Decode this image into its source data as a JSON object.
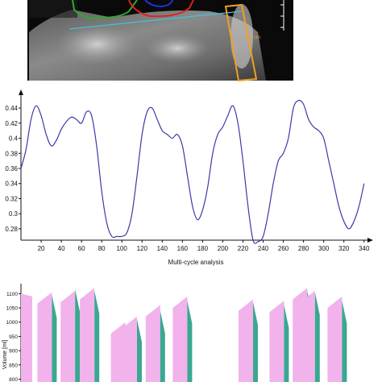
{
  "image_panel": {
    "measure_label": "5.1 cm",
    "colors": {
      "green_roi": "#2fa82f",
      "red_roi": "#e02020",
      "blue_roi": "#2030e0",
      "cyan_line": "#3cc6d8",
      "orange_box": "#f0a020"
    }
  },
  "chart_data": [
    {
      "type": "line",
      "xlabel": "Multi-cycle analysis",
      "ylabel": "",
      "xlim": [
        0,
        345
      ],
      "ylim": [
        0.265,
        0.455
      ],
      "x_ticks": [
        20,
        40,
        60,
        80,
        100,
        120,
        140,
        160,
        180,
        200,
        220,
        240,
        260,
        280,
        300,
        320,
        340
      ],
      "y_ticks": [
        0.28,
        0.3,
        0.32,
        0.34,
        0.36,
        0.38,
        0.4,
        0.42,
        0.44
      ],
      "series": [
        {
          "color": "#3a3aa8",
          "x": [
            0,
            5,
            10,
            15,
            20,
            25,
            30,
            35,
            40,
            45,
            50,
            55,
            60,
            65,
            70,
            75,
            80,
            85,
            90,
            95,
            100,
            105,
            110,
            115,
            120,
            125,
            130,
            135,
            140,
            145,
            150,
            155,
            160,
            165,
            170,
            175,
            180,
            185,
            190,
            195,
            200,
            205,
            210,
            215,
            220,
            225,
            230,
            235,
            240,
            245,
            250,
            255,
            260,
            265,
            270,
            275,
            280,
            285,
            290,
            295,
            300,
            305,
            310,
            315,
            320,
            325,
            330,
            335,
            340
          ],
          "y": [
            0.36,
            0.385,
            0.425,
            0.443,
            0.43,
            0.405,
            0.39,
            0.397,
            0.412,
            0.422,
            0.428,
            0.425,
            0.42,
            0.435,
            0.43,
            0.39,
            0.33,
            0.288,
            0.27,
            0.27,
            0.27,
            0.275,
            0.3,
            0.35,
            0.405,
            0.435,
            0.44,
            0.425,
            0.41,
            0.405,
            0.4,
            0.405,
            0.39,
            0.35,
            0.31,
            0.292,
            0.305,
            0.335,
            0.38,
            0.405,
            0.415,
            0.43,
            0.443,
            0.42,
            0.37,
            0.31,
            0.265,
            0.263,
            0.27,
            0.3,
            0.34,
            0.37,
            0.38,
            0.4,
            0.44,
            0.45,
            0.445,
            0.425,
            0.415,
            0.41,
            0.4,
            0.37,
            0.34,
            0.31,
            0.29,
            0.28,
            0.29,
            0.31,
            0.34
          ]
        }
      ]
    },
    {
      "type": "area",
      "ylabel": "Volume [ml]",
      "y_ticks": [
        800,
        850,
        900,
        950,
        1000,
        1050,
        1100
      ],
      "ylim": [
        790,
        1135
      ],
      "xlim": [
        0,
        450
      ],
      "series": [
        {
          "name": "",
          "color": "#f2b2ec",
          "x": [
            0,
            6,
            12,
            18,
            24,
            30,
            36,
            42,
            48,
            54,
            60,
            66,
            72,
            78,
            84,
            90,
            96,
            102,
            108,
            114,
            120,
            126,
            132,
            138,
            144,
            150,
            156,
            162,
            168,
            174,
            180,
            186,
            192,
            198,
            204,
            210,
            216,
            222,
            228,
            234,
            240,
            246,
            252,
            258,
            264,
            270,
            276,
            282,
            288,
            294,
            300,
            306,
            312,
            318,
            324,
            330,
            336,
            342,
            348,
            354,
            360,
            366,
            372,
            378,
            384,
            390,
            396,
            402,
            408,
            414,
            420,
            426,
            432,
            438,
            444
          ],
          "y": [
            1100,
            1095,
            1090,
            1085,
            1060,
            1040,
            1030,
            1060,
            1080,
            1070,
            1060,
            1050,
            1050,
            1080,
            1050,
            1030,
            1020,
            1010,
            1000,
            990,
            985,
            990,
            990,
            1000,
            1020,
            1010,
            1005,
            995,
            985,
            975,
            990,
            1000,
            1020,
            1030,
            1030,
            1040,
            1020,
            1010,
            1000,
            990,
            985,
            990,
            990,
            1000,
            1030,
            1050,
            1060,
            1070,
            1080,
            1070,
            1060,
            1040,
            1020,
            1030,
            1040,
            1060,
            1050,
            1070,
            1080,
            1090,
            1090,
            1100,
            1110,
            1100,
            1080,
            1060,
            1050,
            1070,
            1080,
            1080,
            1060,
            1020,
            995,
            990,
            985
          ]
        },
        {
          "name": "",
          "color": "#3aa890",
          "x": [
            0,
            6,
            12,
            18,
            24,
            30,
            36,
            42,
            48,
            54,
            60,
            66,
            72,
            78,
            84,
            90,
            96,
            102,
            108,
            114,
            120,
            126,
            132,
            138,
            144,
            150,
            156,
            162,
            168,
            174,
            180,
            186,
            192,
            198,
            204,
            210,
            216,
            222,
            228,
            234,
            240,
            246,
            252,
            258,
            264,
            270,
            276,
            282,
            288,
            294,
            300,
            306,
            312,
            318,
            324,
            330,
            336,
            342,
            348,
            354,
            360,
            366,
            372,
            378,
            384,
            390,
            396,
            402,
            408,
            414,
            420,
            426,
            432,
            438,
            444
          ],
          "y": [
            1060,
            1050,
            1040,
            1035,
            1030,
            1020,
            1040,
            1060,
            1070,
            1070,
            1080,
            1060,
            1060,
            1050,
            1050,
            1040,
            1030,
            1020,
            1010,
            995,
            990,
            990,
            1000,
            1000,
            1010,
            1030,
            1020,
            1010,
            1000,
            990,
            990,
            990,
            1000,
            1020,
            1030,
            1030,
            1040,
            1010,
            1000,
            990,
            980,
            985,
            990,
            1000,
            1020,
            1040,
            1050,
            1060,
            1070,
            1060,
            1040,
            1020,
            1010,
            1020,
            1030,
            1040,
            1060,
            1070,
            1080,
            1080,
            1090,
            1090,
            1100,
            1080,
            1070,
            1060,
            1060,
            1070,
            1080,
            1070,
            1050,
            1020,
            1000,
            990,
            985
          ]
        }
      ],
      "peaks": [
        {
          "x": 40,
          "pink": 1105,
          "green": 1095,
          "color": "pink"
        },
        {
          "x": 70,
          "pink": 1110,
          "green": 1115,
          "color": "green"
        },
        {
          "x": 95,
          "pink": 1120,
          "green": 1110,
          "color": "green"
        },
        {
          "x": 135,
          "pink": 1000,
          "green": 990,
          "color": "pink"
        },
        {
          "x": 150,
          "pink": 1020,
          "green": 1010,
          "color": "green"
        },
        {
          "x": 180,
          "pink": 1060,
          "green": 1040,
          "color": "pink"
        },
        {
          "x": 215,
          "pink": 1090,
          "green": 1075,
          "color": "green"
        },
        {
          "x": 300,
          "pink": 1080,
          "green": 1070,
          "color": "pink"
        },
        {
          "x": 340,
          "pink": 1075,
          "green": 1060,
          "color": "green"
        },
        {
          "x": 370,
          "pink": 1120,
          "green": 1110,
          "color": "pink"
        },
        {
          "x": 380,
          "pink": 1110,
          "green": 1105,
          "color": "green"
        },
        {
          "x": 415,
          "pink": 1090,
          "green": 1075,
          "color": "green"
        }
      ]
    }
  ]
}
